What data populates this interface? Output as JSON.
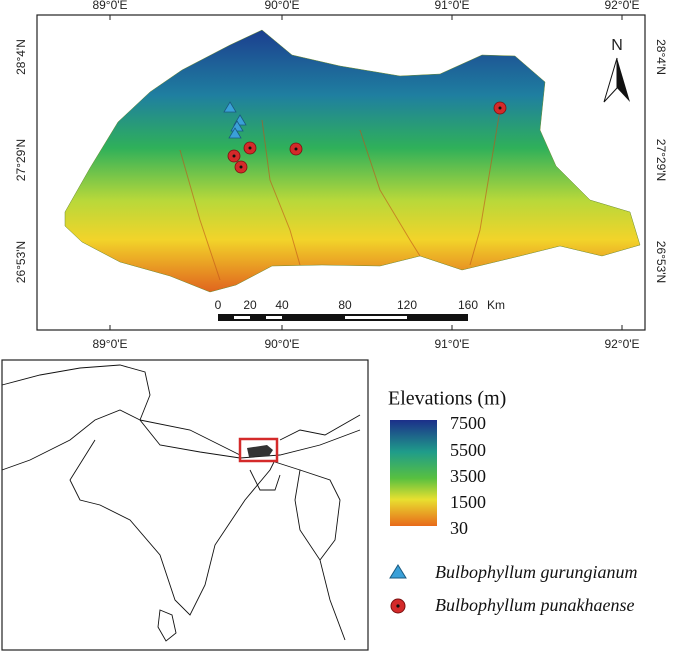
{
  "map": {
    "lon_labels": [
      "89°0'E",
      "90°0'E",
      "91°0'E",
      "92°0'E"
    ],
    "lat_labels": [
      "28°4'N",
      "27°29'N",
      "26°53'N"
    ],
    "north": "N",
    "scale_bar": {
      "labels": [
        "0",
        "20",
        "40",
        "80",
        "120",
        "160"
      ],
      "unit": "Km"
    }
  },
  "legend": {
    "title": "Elevations (m)",
    "ticks": [
      "7500",
      "5500",
      "3500",
      "1500",
      "30"
    ],
    "items": [
      "Bulbophyllum gurungianum",
      "Bulbophyllum punakhaense"
    ]
  }
}
